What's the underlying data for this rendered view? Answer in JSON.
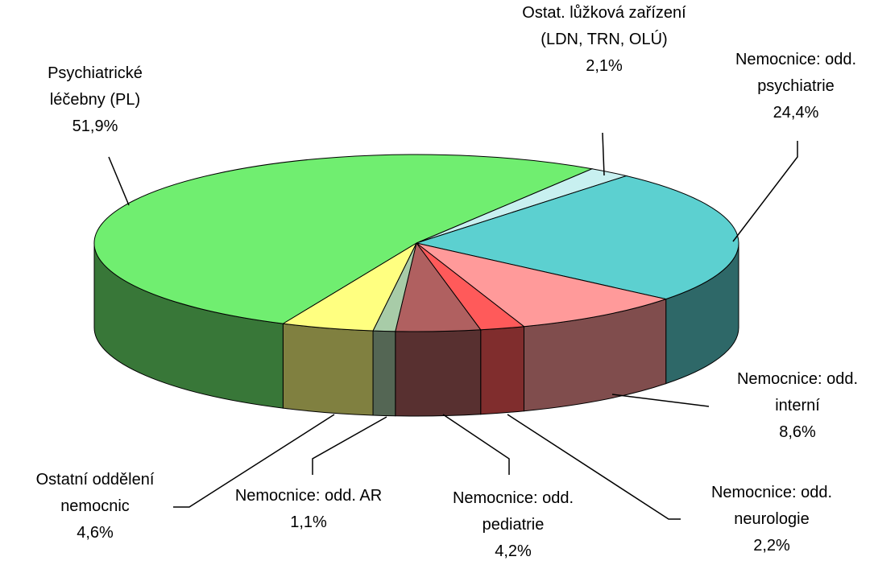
{
  "chart_data": {
    "type": "pie",
    "categories": [
      "Ostat. lůžková zařízení (LDN, TRN, OLÚ)",
      "Nemocnice: odd. psychiatrie",
      "Nemocnice: odd. interní",
      "Nemocnice: odd. neurologie",
      "Nemocnice: odd. pediatrie",
      "Nemocnice: odd. AR",
      "Ostatní oddělení nemocnic",
      "Psychiatrické léčebny (PL)"
    ],
    "values": [
      2.1,
      24.4,
      8.6,
      2.2,
      4.2,
      1.1,
      4.6,
      51.9
    ],
    "value_labels": [
      "2,1%",
      "24,4%",
      "8,6%",
      "2,2%",
      "4,2%",
      "1,1%",
      "4,6%",
      "51,9%"
    ],
    "colors": [
      "#c8f0f0",
      "#5cd0d0",
      "#ff9a9a",
      "#ff5a5a",
      "#b06060",
      "#a8cca8",
      "#ffff80",
      "#70ee70"
    ]
  }
}
